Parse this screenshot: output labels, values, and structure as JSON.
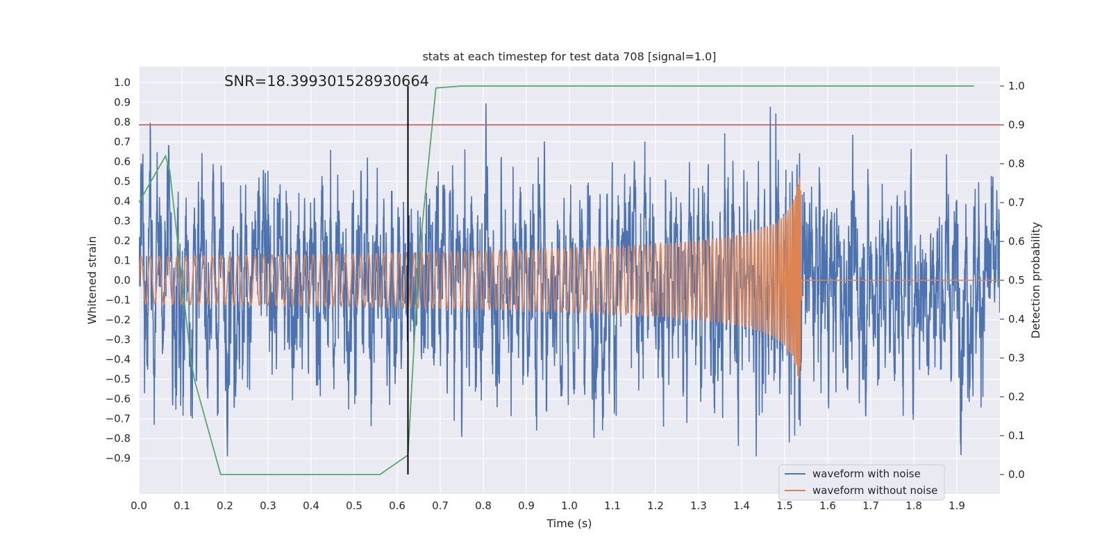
{
  "chart_data": {
    "type": "line",
    "title": "stats at each timestep for test data 708 [signal=1.0]",
    "xlabel": "Time (s)",
    "ylabel": "Whitened strain",
    "y2label": "Detection probability",
    "annotation": "SNR=18.399301528930664",
    "xlim": [
      0.0,
      2.0
    ],
    "ylim": [
      -1.08,
      1.08
    ],
    "y2lim": [
      -0.05,
      1.05
    ],
    "xticks": [
      0.0,
      0.1,
      0.2,
      0.3,
      0.4,
      0.5,
      0.6,
      0.7,
      0.8,
      0.9,
      1.0,
      1.1,
      1.2,
      1.3,
      1.4,
      1.5,
      1.6,
      1.7,
      1.8,
      1.9
    ],
    "xtick_labels": [
      "0.0",
      "0.1",
      "0.2",
      "0.3",
      "0.4",
      "0.5",
      "0.6",
      "0.7",
      "0.8",
      "0.9",
      "1.0",
      "1.1",
      "1.2",
      "1.3",
      "1.4",
      "1.5",
      "1.6",
      "1.7",
      "1.8",
      "1.9"
    ],
    "yticks": [
      1.0,
      0.9,
      0.8,
      0.7,
      0.6,
      0.5,
      0.4,
      0.3,
      0.2,
      0.1,
      0.0,
      -0.1,
      -0.2,
      -0.3,
      -0.4,
      -0.5,
      -0.6,
      -0.7,
      -0.8,
      -0.9
    ],
    "ytick_labels": [
      "1.0",
      "0.9",
      "0.8",
      "0.7",
      "0.6",
      "0.5",
      "0.4",
      "0.3",
      "0.2",
      "0.1",
      "0.0",
      "−0.1",
      "−0.2",
      "−0.3",
      "−0.4",
      "−0.5",
      "−0.6",
      "−0.7",
      "−0.8",
      "−0.9"
    ],
    "y2ticks": [
      1.0,
      0.9,
      0.8,
      0.7,
      0.6,
      0.5,
      0.4,
      0.3,
      0.2,
      0.1,
      0.0
    ],
    "y2tick_labels": [
      "1.0",
      "0.9",
      "0.8",
      "0.7",
      "0.6",
      "0.5",
      "0.4",
      "0.3",
      "0.2",
      "0.1",
      "0.0"
    ],
    "series": [
      {
        "name": "waveform with noise",
        "color": "#4c72b0",
        "axis": "left",
        "description": "noisy whitened strain, amplitude about +/-0.9, dense samples over 0-2 s"
      },
      {
        "name": "waveform without noise",
        "color": "#dd8452",
        "axis": "left",
        "merger_time": 1.54,
        "description": "chirp signal, amplitude grows from 0.12 to 0.5 near 1.54 s, then zero"
      },
      {
        "name": "detection probability",
        "color": "#55a868",
        "axis": "right",
        "x": [
          0.0,
          0.062,
          0.072,
          0.12,
          0.13,
          0.19,
          0.56,
          0.625,
          0.65,
          0.69,
          0.75,
          1.94
        ],
        "y": [
          0.7,
          0.82,
          0.78,
          0.3,
          0.24,
          0.0,
          0.0,
          0.05,
          0.55,
          0.995,
          1.0,
          1.0
        ]
      }
    ],
    "threshold_line": {
      "value": 0.9,
      "axis": "right",
      "color": "#c44e52"
    },
    "vertical_marker": {
      "x": 0.625,
      "color": "#000000"
    },
    "legend": {
      "position": "lower-right",
      "entries": [
        "waveform with noise",
        "waveform without noise"
      ]
    },
    "background_color": "#eaeaf2",
    "grid": true
  }
}
